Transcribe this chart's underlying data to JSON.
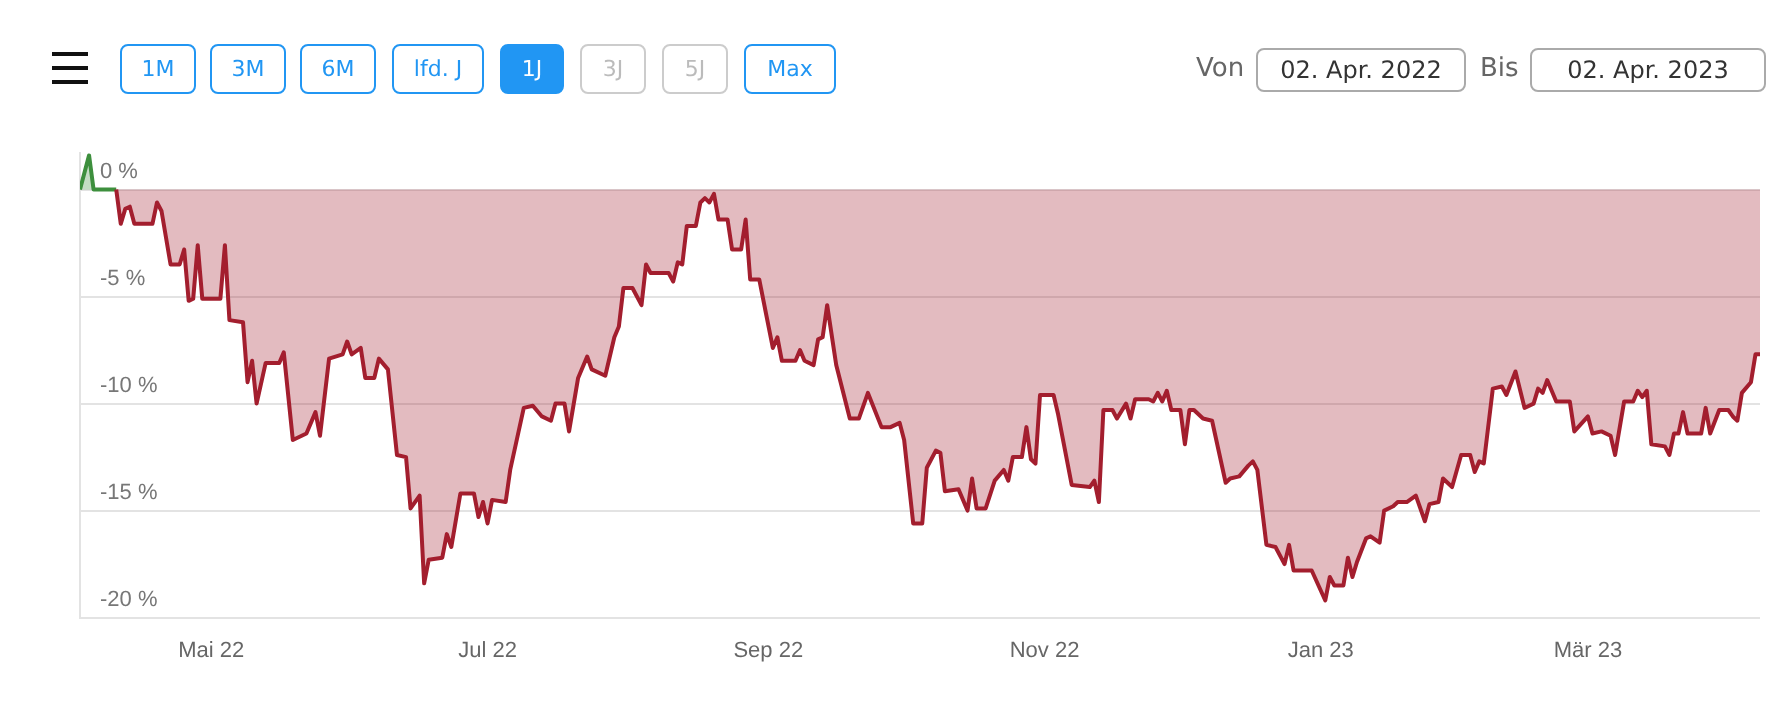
{
  "chart_data": {
    "type": "area",
    "annotations": [
      "1M",
      "3M",
      "6M",
      "lfd. J",
      "1J",
      "3J",
      "5J",
      "Max",
      "Von",
      "02. Apr. 2022",
      "Bis",
      "02. Apr. 2023"
    ],
    "xlim": [
      "2022-04-02",
      "2023-04-08"
    ],
    "xticks": [
      {
        "value": "2022-05-01",
        "label": "Mai 22"
      },
      {
        "value": "2022-07-01",
        "label": "Jul 22"
      },
      {
        "value": "2022-09-01",
        "label": "Sep 22"
      },
      {
        "value": "2022-11-01",
        "label": "Nov 22"
      },
      {
        "value": "2023-01-01",
        "label": "Jan 23"
      },
      {
        "value": "2023-03-01",
        "label": "Mär 23"
      }
    ],
    "ylim": [
      -20,
      1.7
    ],
    "yticks": [
      {
        "value": 0,
        "label": "0 %"
      },
      {
        "value": -5,
        "label": "-5 %"
      },
      {
        "value": -10,
        "label": "-10 %"
      },
      {
        "value": -15,
        "label": "-15 %"
      },
      {
        "value": -20,
        "label": "-20 %"
      }
    ],
    "grid": "y",
    "legend": false,
    "marker": "none",
    "line_style": "solid",
    "series": [
      {
        "color": "#3d8f3d",
        "x": [
          "2022-04-02",
          "2022-04-04",
          "2022-04-05",
          "2022-04-10"
        ],
        "values": [
          0,
          1.6,
          0,
          0
        ]
      },
      {
        "color": "#a31e2e",
        "x": [
          "2022-04-10",
          "2022-04-11",
          "2022-04-12",
          "2022-04-13",
          "2022-04-14",
          "2022-04-18",
          "2022-04-19",
          "2022-04-20",
          "2022-04-22",
          "2022-04-24",
          "2022-04-25",
          "2022-04-26",
          "2022-04-27",
          "2022-04-28",
          "2022-04-29",
          "2022-05-03",
          "2022-05-04",
          "2022-05-05",
          "2022-05-08",
          "2022-05-09",
          "2022-05-10",
          "2022-05-11",
          "2022-05-13",
          "2022-05-16",
          "2022-05-17",
          "2022-05-19",
          "2022-05-22",
          "2022-05-24",
          "2022-05-25",
          "2022-05-27",
          "2022-05-30",
          "2022-05-31",
          "2022-06-01",
          "2022-06-03",
          "2022-06-04",
          "2022-06-06",
          "2022-06-07",
          "2022-06-09",
          "2022-06-11",
          "2022-06-13",
          "2022-06-14",
          "2022-06-16",
          "2022-06-17",
          "2022-06-18",
          "2022-06-21",
          "2022-06-22",
          "2022-06-23",
          "2022-06-25",
          "2022-06-28",
          "2022-06-29",
          "2022-06-30",
          "2022-07-01",
          "2022-07-02",
          "2022-07-05",
          "2022-07-06",
          "2022-07-09",
          "2022-07-11",
          "2022-07-13",
          "2022-07-15",
          "2022-07-16",
          "2022-07-18",
          "2022-07-19",
          "2022-07-21",
          "2022-07-23",
          "2022-07-24",
          "2022-07-27",
          "2022-07-29",
          "2022-07-30",
          "2022-07-31",
          "2022-08-02",
          "2022-08-04",
          "2022-08-05",
          "2022-08-06",
          "2022-08-10",
          "2022-08-11",
          "2022-08-12",
          "2022-08-13",
          "2022-08-14",
          "2022-08-16",
          "2022-08-17",
          "2022-08-18",
          "2022-08-19",
          "2022-08-20",
          "2022-08-21",
          "2022-08-23",
          "2022-08-24",
          "2022-08-26",
          "2022-08-27",
          "2022-08-28",
          "2022-08-30",
          "2022-09-02",
          "2022-09-03",
          "2022-09-04",
          "2022-09-07",
          "2022-09-08",
          "2022-09-09",
          "2022-09-11",
          "2022-09-12",
          "2022-09-13",
          "2022-09-14",
          "2022-09-16",
          "2022-09-19",
          "2022-09-21",
          "2022-09-23",
          "2022-09-26",
          "2022-09-28",
          "2022-09-30",
          "2022-10-01",
          "2022-10-03",
          "2022-10-05",
          "2022-10-06",
          "2022-10-08",
          "2022-10-09",
          "2022-10-10",
          "2022-10-13",
          "2022-10-15",
          "2022-10-16",
          "2022-10-17",
          "2022-10-19",
          "2022-10-21",
          "2022-10-23",
          "2022-10-24",
          "2022-10-25",
          "2022-10-27",
          "2022-10-28",
          "2022-10-29",
          "2022-10-30",
          "2022-10-31",
          "2022-11-03",
          "2022-11-04",
          "2022-11-07",
          "2022-11-11",
          "2022-11-12",
          "2022-11-13",
          "2022-11-14",
          "2022-11-16",
          "2022-11-17",
          "2022-11-19",
          "2022-11-20",
          "2022-11-21",
          "2022-11-24",
          "2022-11-25",
          "2022-11-26",
          "2022-11-27",
          "2022-11-28",
          "2022-11-29",
          "2022-12-01",
          "2022-12-02",
          "2022-12-03",
          "2022-12-04",
          "2022-12-06",
          "2022-12-08",
          "2022-12-11",
          "2022-12-12",
          "2022-12-14",
          "2022-12-16",
          "2022-12-17",
          "2022-12-18",
          "2022-12-20",
          "2022-12-22",
          "2022-12-24",
          "2022-12-25",
          "2022-12-26",
          "2022-12-30",
          "2023-01-02",
          "2023-01-03",
          "2023-01-04",
          "2023-01-06",
          "2023-01-07",
          "2023-01-08",
          "2023-01-09",
          "2023-01-11",
          "2023-01-12",
          "2023-01-14",
          "2023-01-15",
          "2023-01-17",
          "2023-01-18",
          "2023-01-20",
          "2023-01-22",
          "2023-01-24",
          "2023-01-25",
          "2023-01-27",
          "2023-01-28",
          "2023-01-30",
          "2023-02-01",
          "2023-02-03",
          "2023-02-04",
          "2023-02-05",
          "2023-02-06",
          "2023-02-08",
          "2023-02-10",
          "2023-02-11",
          "2023-02-13",
          "2023-02-15",
          "2023-02-17",
          "2023-02-18",
          "2023-02-19",
          "2023-02-20",
          "2023-02-22",
          "2023-02-25",
          "2023-02-26",
          "2023-03-01",
          "2023-03-02",
          "2023-03-04",
          "2023-03-06",
          "2023-03-07",
          "2023-03-09",
          "2023-03-11",
          "2023-03-12",
          "2023-03-13",
          "2023-03-14",
          "2023-03-15",
          "2023-03-18",
          "2023-03-19",
          "2023-03-20",
          "2023-03-21",
          "2023-03-22",
          "2023-03-23",
          "2023-03-26",
          "2023-03-27",
          "2023-03-28",
          "2023-03-30",
          "2023-04-01",
          "2023-04-02",
          "2023-04-03",
          "2023-04-04",
          "2023-04-06",
          "2023-04-07",
          "2023-04-08"
        ],
        "values": [
          0,
          -1.6,
          -0.9,
          -0.8,
          -1.6,
          -1.6,
          -0.6,
          -1.0,
          -3.5,
          -3.5,
          -2.8,
          -5.2,
          -5.1,
          -2.6,
          -5.1,
          -5.1,
          -2.6,
          -6.1,
          -6.2,
          -9.0,
          -8.0,
          -10.0,
          -8.1,
          -8.1,
          -7.6,
          -11.7,
          -11.4,
          -10.4,
          -11.5,
          -7.9,
          -7.7,
          -7.1,
          -7.7,
          -7.4,
          -8.8,
          -8.8,
          -7.9,
          -8.4,
          -12.4,
          -12.5,
          -14.9,
          -14.3,
          -18.4,
          -17.3,
          -17.2,
          -16.1,
          -16.7,
          -14.2,
          -14.2,
          -15.3,
          -14.6,
          -15.6,
          -14.5,
          -14.6,
          -13.1,
          -10.2,
          -10.1,
          -10.6,
          -10.8,
          -10.0,
          -10.0,
          -11.3,
          -8.8,
          -7.8,
          -8.4,
          -8.7,
          -6.9,
          -6.4,
          -4.6,
          -4.6,
          -5.4,
          -3.5,
          -3.9,
          -3.9,
          -4.3,
          -3.4,
          -3.5,
          -1.7,
          -1.7,
          -0.6,
          -0.4,
          -0.6,
          -0.2,
          -1.4,
          -1.4,
          -2.8,
          -2.8,
          -1.4,
          -4.2,
          -4.2,
          -7.4,
          -6.9,
          -8.0,
          -8.0,
          -7.5,
          -8.0,
          -8.2,
          -7.0,
          -6.9,
          -5.4,
          -8.2,
          -10.7,
          -10.7,
          -9.5,
          -11.1,
          -11.1,
          -10.9,
          -11.7,
          -15.6,
          -15.6,
          -13.0,
          -12.2,
          -12.3,
          -14.1,
          -14.0,
          -15.0,
          -13.5,
          -14.9,
          -14.9,
          -13.6,
          -13.1,
          -13.6,
          -12.5,
          -12.5,
          -11.1,
          -12.6,
          -12.8,
          -9.6,
          -9.6,
          -10.5,
          -13.8,
          -13.9,
          -13.6,
          -14.6,
          -10.3,
          -10.3,
          -10.7,
          -10.0,
          -10.7,
          -9.8,
          -9.8,
          -9.9,
          -9.5,
          -9.9,
          -9.4,
          -10.3,
          -10.3,
          -11.9,
          -10.3,
          -10.3,
          -10.7,
          -10.8,
          -13.7,
          -13.5,
          -13.4,
          -12.9,
          -12.7,
          -13.1,
          -16.6,
          -16.7,
          -17.5,
          -16.6,
          -17.8,
          -17.8,
          -19.2,
          -18.1,
          -18.5,
          -18.5,
          -17.2,
          -18.1,
          -17.4,
          -16.3,
          -16.2,
          -16.5,
          -15.0,
          -14.8,
          -14.6,
          -14.6,
          -14.3,
          -15.5,
          -14.7,
          -14.6,
          -13.5,
          -13.9,
          -12.4,
          -12.4,
          -13.2,
          -12.7,
          -12.8,
          -9.3,
          -9.2,
          -9.6,
          -8.5,
          -10.2,
          -10.0,
          -9.3,
          -9.5,
          -8.9,
          -9.9,
          -9.9,
          -11.3,
          -10.6,
          -11.4,
          -11.3,
          -11.5,
          -12.4,
          -9.9,
          -9.9,
          -9.4,
          -9.7,
          -9.4,
          -11.9,
          -12.0,
          -12.4,
          -11.4,
          -11.4,
          -10.4,
          -11.4,
          -11.4,
          -10.2,
          -11.4,
          -10.3,
          -10.3,
          -10.6,
          -10.8,
          -9.5,
          -9.0,
          -7.7,
          -7.7
        ]
      }
    ]
  }
}
